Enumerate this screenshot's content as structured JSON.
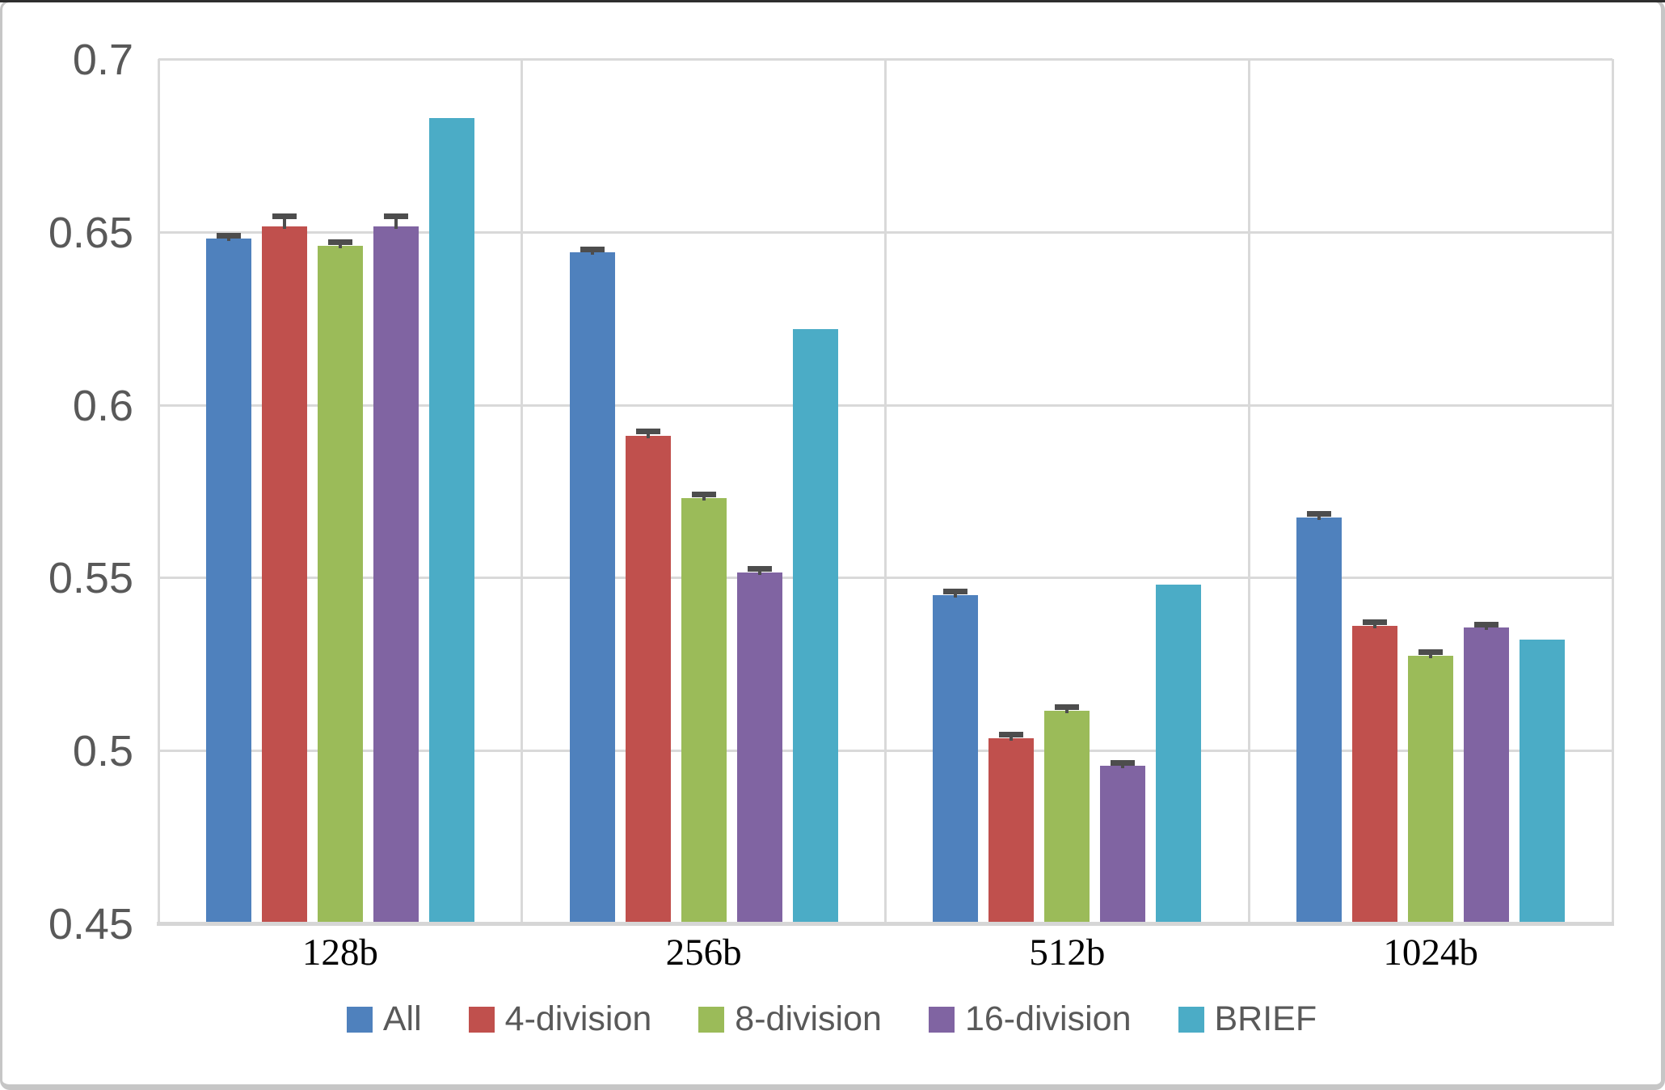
{
  "chart_data": {
    "type": "bar",
    "title": "",
    "xlabel": "",
    "ylabel": "",
    "categories": [
      "128b",
      "256b",
      "512b",
      "1024b"
    ],
    "series": [
      {
        "name": "All",
        "color": "#4F81BD",
        "values": [
          0.648,
          0.644,
          0.545,
          0.5675
        ],
        "errors": [
          0.001,
          0.001,
          0.001,
          0.001
        ]
      },
      {
        "name": "4-division",
        "color": "#C0504D",
        "values": [
          0.6515,
          0.591,
          0.5035,
          0.536
        ],
        "errors": [
          0.003,
          0.0012,
          0.001,
          0.001
        ]
      },
      {
        "name": "8-division",
        "color": "#9BBB59",
        "values": [
          0.646,
          0.573,
          0.5115,
          0.5275
        ],
        "errors": [
          0.001,
          0.001,
          0.001,
          0.001
        ]
      },
      {
        "name": "16-division",
        "color": "#8064A2",
        "values": [
          0.6515,
          0.5515,
          0.4955,
          0.5355
        ],
        "errors": [
          0.003,
          0.001,
          0.001,
          0.001
        ]
      },
      {
        "name": "BRIEF",
        "color": "#4BACC6",
        "values": [
          0.683,
          0.622,
          0.548,
          0.532
        ],
        "errors": [
          null,
          null,
          null,
          null
        ]
      }
    ],
    "ylim": [
      0.45,
      0.7
    ],
    "yticks": [
      0.45,
      0.5,
      0.55,
      0.6,
      0.65,
      0.7
    ],
    "ytick_labels": [
      "0.45",
      "0.5",
      "0.55",
      "0.6",
      "0.65",
      "0.7"
    ],
    "grid": true,
    "legend_position": "bottom",
    "colors": {
      "gridline": "#d9d9d9",
      "axis_line": "#d6d6d6",
      "error_bar": "#4d4d4d",
      "ytick_text": "#595959",
      "xtick_text": "#000000",
      "legend_text": "#595959",
      "frame_border": "#c6c6c6",
      "window_top_edge": "#2e2e2e",
      "background": "#ffffff"
    }
  }
}
